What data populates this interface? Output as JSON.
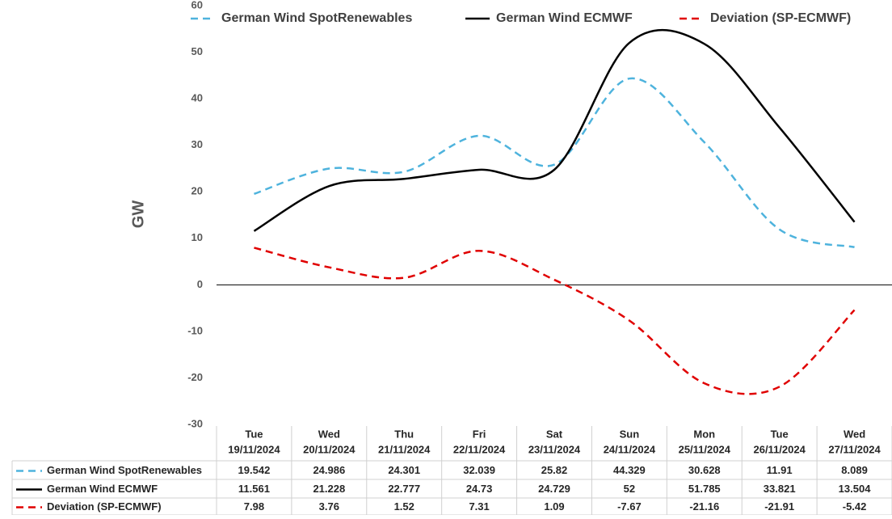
{
  "chart_data": {
    "type": "line",
    "y_label": "GW",
    "categories": [
      [
        "Tue",
        "19/11/2024"
      ],
      [
        "Wed",
        "20/11/2024"
      ],
      [
        "Thu",
        "21/11/2024"
      ],
      [
        "Fri",
        "22/11/2024"
      ],
      [
        "Sat",
        "23/11/2024"
      ],
      [
        "Sun",
        "24/11/2024"
      ],
      [
        "Mon",
        "25/11/2024"
      ],
      [
        "Tue",
        "26/11/2024"
      ],
      [
        "Wed",
        "27/11/2024"
      ]
    ],
    "series": [
      {
        "name": "German Wind SpotRenewables",
        "color": "#4eb3dd",
        "dash": "dashed",
        "values": [
          19.542,
          24.986,
          24.301,
          32.039,
          25.82,
          44.329,
          30.628,
          11.91,
          8.089
        ]
      },
      {
        "name": "German Wind ECMWF",
        "color": "#000000",
        "dash": "solid",
        "values": [
          11.561,
          21.228,
          22.777,
          24.73,
          24.729,
          52,
          51.785,
          33.821,
          13.504
        ]
      },
      {
        "name": "Deviation (SP-ECMWF)",
        "color": "#e00000",
        "dash": "dashed",
        "values": [
          7.98,
          3.76,
          1.52,
          7.31,
          1.09,
          -7.67,
          -21.16,
          -21.91,
          -5.42
        ]
      }
    ],
    "ylim": [
      -30,
      60
    ],
    "yticks": [
      -30,
      -20,
      -10,
      0,
      10,
      20,
      30,
      40,
      50,
      60
    ],
    "grid": false,
    "smooth": true,
    "data_table": true,
    "legend": "top"
  }
}
